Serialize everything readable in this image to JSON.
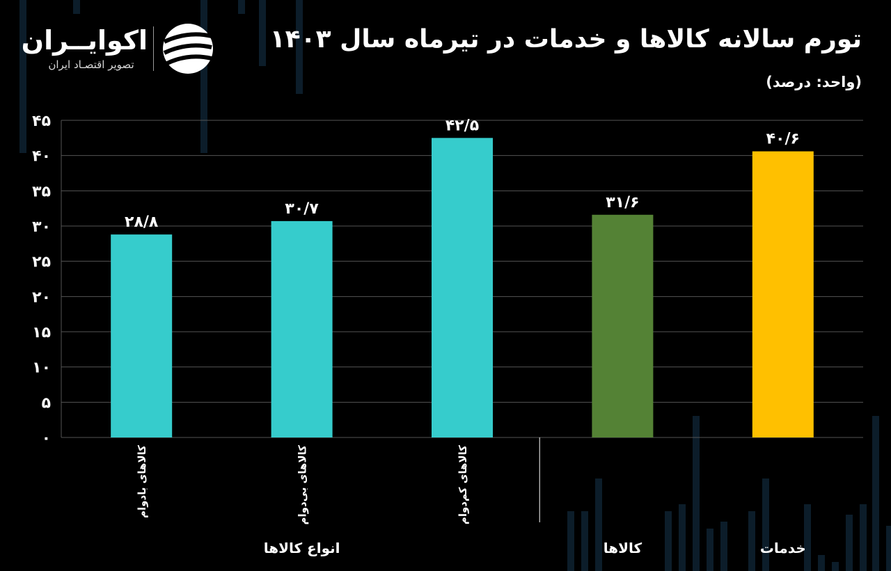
{
  "header": {
    "title": "تورم سالانه کالاها و خدمات در تیرماه سال ۱۴۰۳",
    "unit": "(واحد: درصد)"
  },
  "logo": {
    "name": "اکوایــران",
    "tagline": "تصویر اقتصـاد ایران"
  },
  "colors": {
    "background": "#000000",
    "grid": "#555555",
    "text": "#ffffff",
    "turquoise": "#36CCCC",
    "green": "#548235",
    "yellow": "#FFC000",
    "decor": "#0c1d2a"
  },
  "chart_data": {
    "type": "bar",
    "title": "تورم سالانه کالاها و خدمات در تیرماه سال ۱۴۰۳",
    "ylabel": "",
    "xlabel": "",
    "ylim": [
      0,
      45
    ],
    "yticks": [
      0,
      5,
      10,
      15,
      20,
      25,
      30,
      35,
      40,
      45
    ],
    "ytick_labels": [
      "۰",
      "۵",
      "۱۰",
      "۱۵",
      "۲۰",
      "۲۵",
      "۳۰",
      "۳۵",
      "۴۰",
      "۴۵"
    ],
    "grid": true,
    "categories": [
      "کالاهای بادوام",
      "کالاهای بی‌دوام",
      "کالاهای کم‌دوام",
      "",
      ""
    ],
    "values": [
      28.8,
      30.7,
      42.5,
      31.6,
      40.6
    ],
    "value_labels": [
      "۲۸/۸",
      "۳۰/۷",
      "۴۲/۵",
      "۳۱/۶",
      "۴۰/۶"
    ],
    "bar_colors": [
      "#36CCCC",
      "#36CCCC",
      "#36CCCC",
      "#548235",
      "#FFC000"
    ],
    "groups": [
      {
        "label": "انواع کالاها",
        "bars": [
          0,
          1,
          2
        ]
      },
      {
        "label": "کالاها",
        "bars": [
          3
        ]
      },
      {
        "label": "خدمات",
        "bars": [
          4
        ]
      }
    ]
  }
}
